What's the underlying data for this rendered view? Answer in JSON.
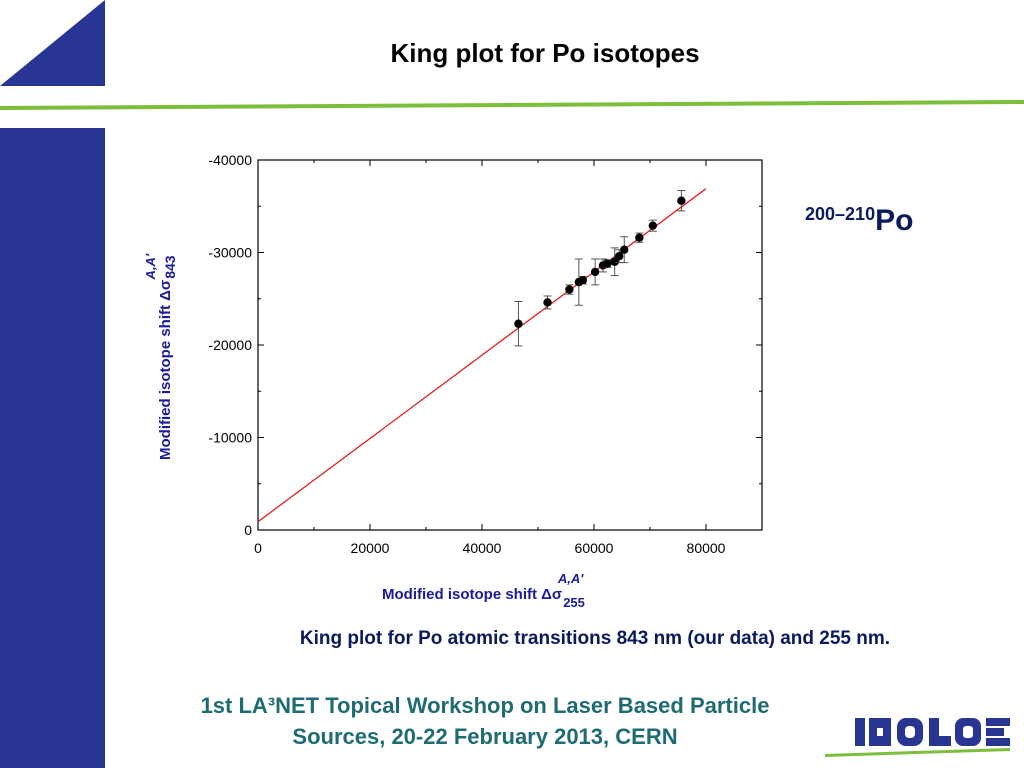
{
  "slide": {
    "title": "King plot for Po isotopes",
    "isotope_range": "200–210",
    "isotope_element": "Po",
    "caption": "King plot for Po atomic transitions 843 nm (our data) and 255 nm.",
    "footer_line1": "1st LA³NET Topical Workshop on Laser Based Particle",
    "footer_line2": "Sources, 20-22 February 2013,   CERN",
    "logo_text": "ISOLDE",
    "colors": {
      "navy": "#283593",
      "green": "#7cbf3b",
      "fit_line": "#e02020",
      "axis_label": "#1a1a9c",
      "footer_text": "#1f6b73"
    }
  },
  "chart_data": {
    "type": "scatter",
    "xlabel": "Modified isotope shift Δσ",
    "xlabel_sup": "A,A'",
    "xlabel_sub": "255",
    "ylabel": "Modified isotope shift Δσ",
    "ylabel_sup": "A,A'",
    "ylabel_sub": "843",
    "xlim": [
      0,
      90000
    ],
    "ylim": [
      0,
      -40000
    ],
    "x_ticks": [
      0,
      20000,
      40000,
      60000,
      80000
    ],
    "x_tick_labels": [
      "0",
      "20000",
      "40000",
      "60000",
      "80000"
    ],
    "y_ticks": [
      0,
      -10000,
      -20000,
      -30000,
      -40000
    ],
    "y_tick_labels": [
      "0",
      "-10000",
      "-20000",
      "-30000",
      "-40000"
    ],
    "points": [
      {
        "x": 46500,
        "y": -22300,
        "err": 2400
      },
      {
        "x": 51700,
        "y": -24600,
        "err": 700
      },
      {
        "x": 55600,
        "y": -26000,
        "err": 500
      },
      {
        "x": 57300,
        "y": -26800,
        "err": 2500
      },
      {
        "x": 58000,
        "y": -27000,
        "err": 400
      },
      {
        "x": 60200,
        "y": -27900,
        "err": 1400
      },
      {
        "x": 61600,
        "y": -28600,
        "err": 700
      },
      {
        "x": 62400,
        "y": -28800,
        "err": 400
      },
      {
        "x": 63700,
        "y": -29000,
        "err": 1500
      },
      {
        "x": 64500,
        "y": -29600,
        "err": 700
      },
      {
        "x": 65400,
        "y": -30300,
        "err": 1400
      },
      {
        "x": 68100,
        "y": -31600,
        "err": 500
      },
      {
        "x": 70500,
        "y": -32900,
        "err": 600
      },
      {
        "x": 75600,
        "y": -35600,
        "err": 1100
      }
    ],
    "fit_line": {
      "x": [
        0,
        80000
      ],
      "y": [
        -900,
        -36900
      ]
    }
  }
}
